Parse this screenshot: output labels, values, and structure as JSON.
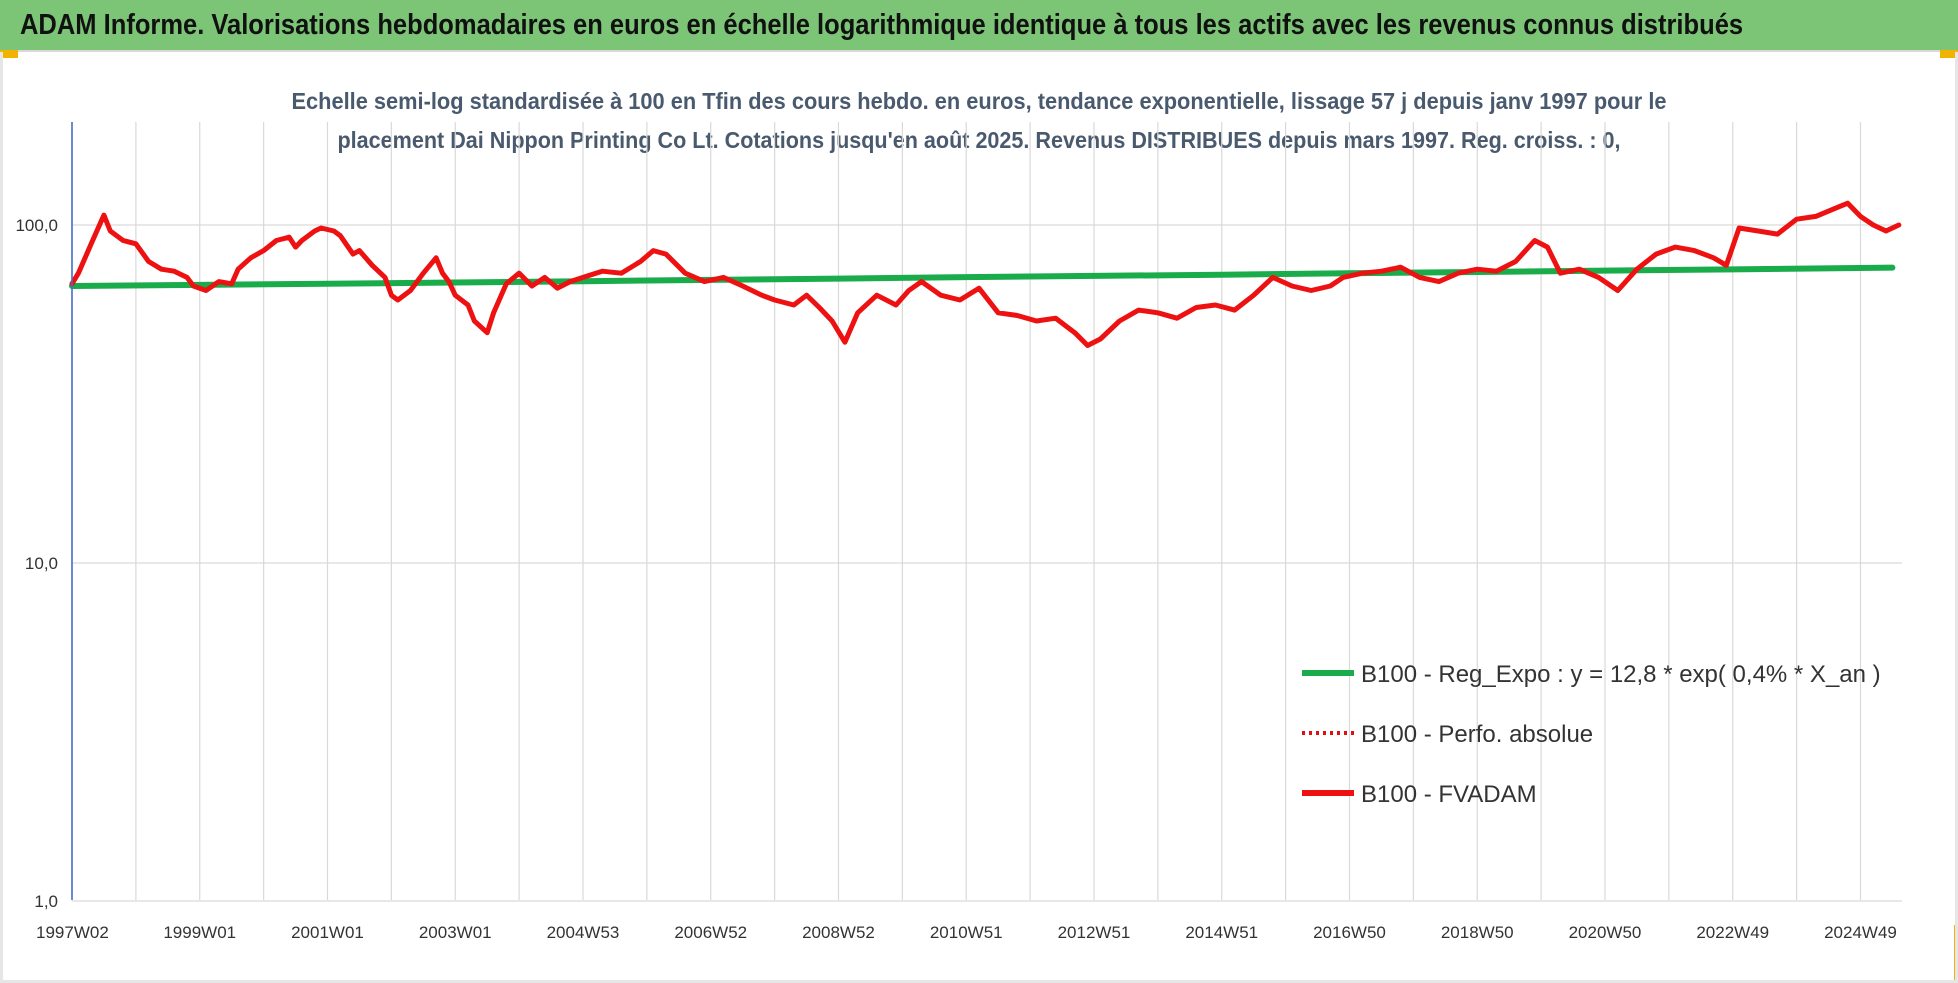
{
  "header": {
    "title": "ADAM Informe. Valorisations hebdomadaires en euros en échelle logarithmique identique à tous les actifs avec les revenus connus distribués"
  },
  "colors": {
    "banner": "#7cc576",
    "accent_corner": "#f2b300",
    "fvadam": "#ee1111",
    "perfo": "#e01010",
    "regression": "#1aab4b",
    "grid": "#d9d9d9",
    "axis": "#4472c4"
  },
  "chart_data": {
    "type": "line",
    "subtitle_lines": [
      "Echelle semi-log standardisée à 100 en Tfin des cours hebdo. en euros, tendance exponentielle, lissage 57 j depuis janv 1997 pour le",
      "placement Dai Nippon Printing Co Lt. Cotations jusqu'en août 2025. Revenus DISTRIBUES depuis mars 1997. Reg. croiss. : 0,"
    ],
    "y_scale": "log",
    "ylim": [
      1,
      200
    ],
    "y_ticks": [
      {
        "value": 1,
        "label": "1,0"
      },
      {
        "value": 10,
        "label": "10,0"
      },
      {
        "value": 100,
        "label": "100,0"
      }
    ],
    "xlim": [
      1997.0,
      2025.65
    ],
    "x_ticks": [
      {
        "value": 1997.0,
        "label": "1997W02"
      },
      {
        "value": 1999.0,
        "label": "1999W01"
      },
      {
        "value": 2001.0,
        "label": "2001W01"
      },
      {
        "value": 2003.0,
        "label": "2003W01"
      },
      {
        "value": 2005.0,
        "label": "2004W53"
      },
      {
        "value": 2007.0,
        "label": "2006W52"
      },
      {
        "value": 2009.0,
        "label": "2008W52"
      },
      {
        "value": 2011.0,
        "label": "2010W51"
      },
      {
        "value": 2013.0,
        "label": "2012W51"
      },
      {
        "value": 2015.0,
        "label": "2014W51"
      },
      {
        "value": 2017.0,
        "label": "2016W50"
      },
      {
        "value": 2019.0,
        "label": "2018W50"
      },
      {
        "value": 2021.0,
        "label": "2020W50"
      },
      {
        "value": 2023.0,
        "label": "2022W49"
      },
      {
        "value": 2025.0,
        "label": "2024W49"
      }
    ],
    "grid": true,
    "legend_position": "bottom-right",
    "series": [
      {
        "name": "B100 - Reg_Expo : y = 12,8 * exp( 0,4% *  X_an )",
        "style": "solid-thick",
        "color": "#1aab4b",
        "x": [
          1997.0,
          1999.0,
          2001.0,
          2003.0,
          2005.0,
          2007.0,
          2009.0,
          2011.0,
          2013.0,
          2015.0,
          2017.0,
          2019.0,
          2021.0,
          2023.0,
          2025.5
        ],
        "y": [
          66,
          66.5,
          67,
          67.6,
          68.2,
          68.8,
          69.4,
          70.1,
          70.7,
          71.3,
          72.0,
          72.6,
          73.3,
          73.9,
          74.8
        ]
      },
      {
        "name": "B100 - Perfo. absolue",
        "style": "dotted",
        "color": "#e01010",
        "x": [],
        "y": []
      },
      {
        "name": "B100 - FVADAM",
        "style": "solid-thick",
        "color": "#ee1111",
        "x": [
          1997.0,
          1997.1,
          1997.3,
          1997.5,
          1997.6,
          1997.8,
          1998.0,
          1998.2,
          1998.4,
          1998.6,
          1998.8,
          1998.9,
          1999.1,
          1999.3,
          1999.5,
          1999.6,
          1999.8,
          2000.0,
          2000.2,
          2000.4,
          2000.5,
          2000.6,
          2000.8,
          2000.9,
          2001.1,
          2001.2,
          2001.4,
          2001.5,
          2001.7,
          2001.9,
          2002.0,
          2002.1,
          2002.3,
          2002.5,
          2002.7,
          2002.8,
          2002.9,
          2003.0,
          2003.2,
          2003.3,
          2003.5,
          2003.6,
          2003.8,
          2004.0,
          2004.2,
          2004.4,
          2004.6,
          2004.8,
          2005.0,
          2005.3,
          2005.6,
          2005.9,
          2006.1,
          2006.3,
          2006.6,
          2006.9,
          2007.2,
          2007.5,
          2007.8,
          2008.0,
          2008.3,
          2008.5,
          2008.7,
          2008.9,
          2009.1,
          2009.3,
          2009.6,
          2009.9,
          2010.1,
          2010.3,
          2010.6,
          2010.9,
          2011.2,
          2011.5,
          2011.8,
          2012.1,
          2012.4,
          2012.7,
          2012.9,
          2013.1,
          2013.4,
          2013.7,
          2014.0,
          2014.3,
          2014.6,
          2014.9,
          2015.2,
          2015.5,
          2015.8,
          2016.1,
          2016.4,
          2016.7,
          2016.9,
          2017.2,
          2017.5,
          2017.8,
          2018.1,
          2018.4,
          2018.7,
          2019.0,
          2019.3,
          2019.6,
          2019.9,
          2020.1,
          2020.3,
          2020.6,
          2020.9,
          2021.2,
          2021.5,
          2021.8,
          2022.1,
          2022.4,
          2022.7,
          2022.9,
          2023.1,
          2023.4,
          2023.7,
          2024.0,
          2024.3,
          2024.6,
          2024.8,
          2025.0,
          2025.2,
          2025.4,
          2025.6
        ],
        "y": [
          67,
          72,
          88,
          107,
          96,
          90,
          88,
          78,
          74,
          73,
          70,
          66,
          64,
          68,
          67,
          74,
          80,
          84,
          90,
          92,
          86,
          90,
          96,
          98,
          96,
          93,
          82,
          84,
          76,
          70,
          62,
          60,
          64,
          72,
          80,
          72,
          68,
          62,
          58,
          52,
          48,
          55,
          67,
          72,
          66,
          70,
          65,
          68,
          70,
          73,
          72,
          78,
          84,
          82,
          72,
          68,
          70,
          66,
          62,
          60,
          58,
          62,
          57,
          52,
          45,
          55,
          62,
          58,
          64,
          68,
          62,
          60,
          65,
          55,
          54,
          52,
          53,
          48,
          44,
          46,
          52,
          56,
          55,
          53,
          57,
          58,
          56,
          62,
          70,
          66,
          64,
          66,
          70,
          72,
          73,
          75,
          70,
          68,
          72,
          74,
          73,
          78,
          90,
          86,
          72,
          74,
          70,
          64,
          74,
          82,
          86,
          84,
          80,
          76,
          98,
          96,
          94,
          104,
          106,
          112,
          116,
          106,
          100,
          96,
          100
        ]
      }
    ]
  }
}
